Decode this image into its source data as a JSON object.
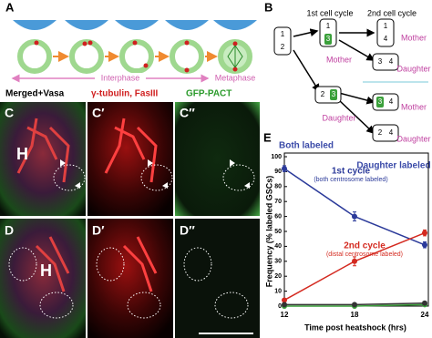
{
  "panel_a": {
    "label": "A",
    "interphase": "Interphase",
    "metaphase": "Metaphase"
  },
  "panel_b": {
    "label": "B",
    "headers": [
      "1st cell cycle",
      "2nd cell cycle"
    ],
    "cells": [
      [
        "1",
        "2"
      ],
      [
        "1",
        "3"
      ],
      [
        "2",
        "3"
      ],
      [
        "1",
        "4"
      ],
      [
        "3",
        "4"
      ],
      [
        "3",
        "4"
      ],
      [
        "2",
        "4"
      ]
    ],
    "roles": [
      "Mother",
      "Daughter",
      "Mother",
      "Daughter",
      "Mother",
      "Daughter"
    ],
    "outcomes": [
      "Both labeled",
      "Daughter labeled"
    ]
  },
  "panel_cd": {
    "headers": [
      "Merged+Vasa",
      "γ-tubulin, FasIII",
      "GFP-PACT"
    ],
    "labels": [
      "C",
      "C′",
      "C″",
      "D",
      "D′",
      "D″"
    ],
    "hub": "H"
  },
  "chart_data": {
    "type": "line",
    "panel_label": "E",
    "xlabel": "Time post heatshock (hrs)",
    "ylabel": "Frequency (% labeled GSCs)",
    "x": [
      12,
      18,
      24
    ],
    "xlim": [
      12,
      24
    ],
    "xticks": [
      12,
      18,
      24
    ],
    "ylim": [
      0,
      100
    ],
    "yticks": [
      0,
      10,
      20,
      30,
      40,
      50,
      60,
      70,
      80,
      90,
      100
    ],
    "series": [
      {
        "name": "1st cycle",
        "color": "#2b3a9a",
        "values": [
          92,
          60,
          41
        ],
        "errors": [
          2,
          3,
          2
        ]
      },
      {
        "name": "2nd cycle",
        "color": "#d42a20",
        "values": [
          4,
          30,
          49
        ],
        "errors": [
          1,
          3,
          2
        ]
      },
      {
        "color": "#3aa03a",
        "values": [
          0,
          0,
          1
        ]
      },
      {
        "color": "#333333",
        "values": [
          1,
          1,
          2
        ]
      }
    ],
    "annotations": [
      "(both centrosome labeled)",
      "(distal centrosome labeled)"
    ]
  }
}
